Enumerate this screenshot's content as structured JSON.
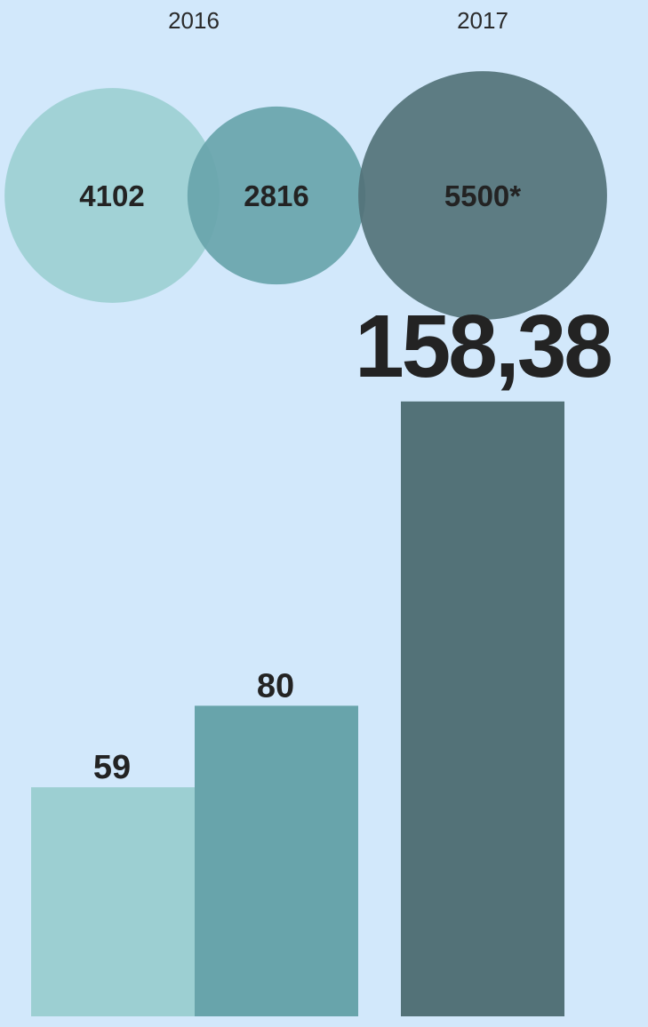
{
  "chart_data": [
    {
      "type": "bubble",
      "categories": [
        "2016",
        "2016",
        "2017"
      ],
      "group_labels": [
        "2016",
        "2017"
      ],
      "values": [
        4102,
        2816,
        5500
      ],
      "labels": [
        "4102",
        "2816",
        "5500*"
      ],
      "colors": [
        "#9ccfd2",
        "#68a4ab",
        "#537278"
      ]
    },
    {
      "type": "bar",
      "categories": [
        "2016",
        "2016",
        "2017"
      ],
      "values": [
        59,
        80,
        158.38
      ],
      "labels": [
        "59",
        "80",
        "158,38"
      ],
      "colors": [
        "#9ccfd2",
        "#68a4ab",
        "#537278"
      ],
      "ylim": [
        0,
        160
      ],
      "grid": false
    }
  ],
  "colors": {
    "background": "#d2e8fb",
    "text": "#232323"
  }
}
